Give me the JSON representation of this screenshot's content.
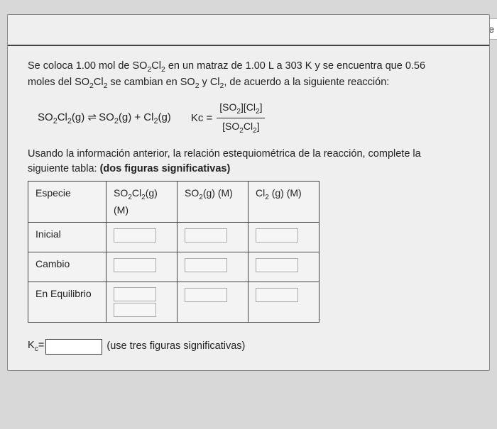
{
  "topRight": "Tie",
  "problem": {
    "line1_a": "Se coloca 1.00 mol de SO",
    "line1_b": "Cl",
    "line1_c": " en un matraz de 1.00 L a 303 K y se encuentra que  0.56",
    "line2_a": "moles del SO",
    "line2_b": "Cl",
    "line2_c": "  se cambian  en SO",
    "line2_d": " y Cl",
    "line2_e": ", de acuerdo a la siguiente reacción:"
  },
  "equation": {
    "lhs_a": "SO",
    "lhs_b": "Cl",
    "lhs_c": "(g)",
    "arrow": "⇌",
    "rhs_a": "SO",
    "rhs_b": "(g) + Cl",
    "rhs_c": "(g)",
    "kcLabel": "Kc =",
    "num_a": "[SO",
    "num_b": "][Cl",
    "num_c": "]",
    "den_a": "[SO",
    "den_b": "Cl",
    "den_c": "]"
  },
  "instr": {
    "line_a": "Usando la información anterior, la relación estequiométrica de la reacción,  complete la",
    "line_b": "siguiente tabla: ",
    "line_c": "(dos figuras significativas)"
  },
  "table": {
    "headers": {
      "c0": "Especie",
      "c1_a": "SO",
      "c1_b": "Cl",
      "c1_c": "(g)",
      "c1_d": "(M)",
      "c2_a": "SO",
      "c2_b": "(g) (M)",
      "c3_a": "Cl",
      "c3_b": " (g) (M)"
    },
    "rows": {
      "r1": "Inicial",
      "r2": "Cambio",
      "r3": "En Equilibrio"
    }
  },
  "kcFinal": {
    "label": "K",
    "sub": "c",
    "eq": "=",
    "note": "(use tres figuras significativas)"
  }
}
